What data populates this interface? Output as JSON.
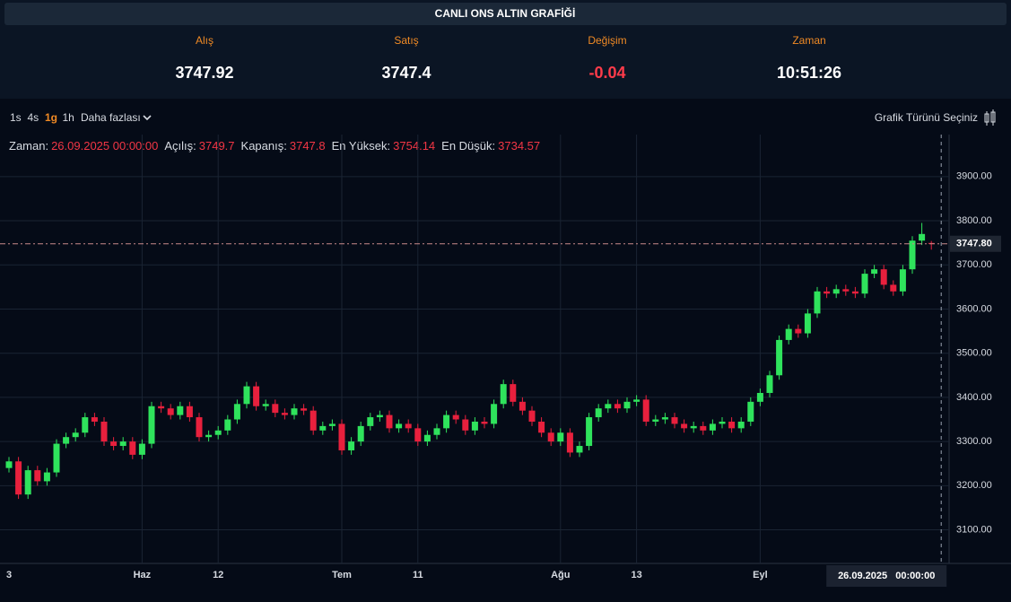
{
  "header": {
    "title": "CANLI ONS ALTIN GRAFİĞİ",
    "quotes": [
      {
        "label": "Alış",
        "value": "3747.92"
      },
      {
        "label": "Satış",
        "value": "3747.4"
      },
      {
        "label": "Değişim",
        "value": "-0.04"
      },
      {
        "label": "Zaman",
        "value": "10:51:26"
      }
    ]
  },
  "toolbar": {
    "intervals": [
      "1s",
      "4s",
      "1g",
      "1h"
    ],
    "active": "1g",
    "more": "Daha fazlası",
    "chart_type": "Grafik Türünü Seçiniz"
  },
  "info": {
    "labels": [
      "Zaman:",
      "Açılış:",
      "Kapanış:",
      "En Yüksek:",
      "En Düşük:"
    ],
    "values": [
      "26.09.2025 00:00:00",
      "3749.7",
      "3747.8",
      "3754.14",
      "3734.57"
    ]
  },
  "chart_data": {
    "type": "candlestick",
    "categories": [
      "3",
      null,
      null,
      null,
      null,
      null,
      null,
      null,
      null,
      null,
      null,
      null,
      null,
      null,
      "Haz",
      null,
      null,
      null,
      null,
      null,
      null,
      null,
      "12",
      null,
      null,
      null,
      null,
      null,
      null,
      null,
      null,
      null,
      null,
      null,
      null,
      "Tem",
      null,
      null,
      null,
      null,
      null,
      null,
      null,
      "11",
      null,
      null,
      null,
      null,
      null,
      null,
      null,
      null,
      null,
      null,
      null,
      null,
      null,
      null,
      "Ağu",
      null,
      null,
      null,
      null,
      null,
      null,
      null,
      "13",
      null,
      null,
      null,
      null,
      null,
      null,
      null,
      null,
      null,
      null,
      null,
      null,
      "Eyl",
      null,
      null,
      null,
      null,
      null,
      null,
      null,
      null,
      null,
      null,
      null,
      null,
      null,
      null,
      null,
      null,
      null,
      null
    ],
    "open": [
      3240,
      3255,
      3180,
      3235,
      3210,
      3230,
      3295,
      3310,
      3320,
      3355,
      3345,
      3300,
      3290,
      3300,
      3270,
      3295,
      3380,
      3375,
      3360,
      3380,
      3355,
      3310,
      3315,
      3325,
      3350,
      3385,
      3425,
      3380,
      3385,
      3365,
      3360,
      3375,
      3370,
      3325,
      3335,
      3340,
      3280,
      3300,
      3335,
      3355,
      3360,
      3330,
      3340,
      3330,
      3300,
      3315,
      3330,
      3360,
      3350,
      3325,
      3345,
      3340,
      3385,
      3430,
      3390,
      3370,
      3345,
      3320,
      3300,
      3320,
      3275,
      3290,
      3355,
      3375,
      3385,
      3375,
      3390,
      3395,
      3345,
      3350,
      3355,
      3340,
      3330,
      3335,
      3325,
      3340,
      3345,
      3330,
      3345,
      3390,
      3410,
      3450,
      3530,
      3555,
      3545,
      3590,
      3640,
      3635,
      3645,
      3640,
      3635,
      3680,
      3690,
      3655,
      3640,
      3690,
      3755,
      3749.7
    ],
    "high": [
      3265,
      3265,
      3245,
      3245,
      3240,
      3305,
      3320,
      3330,
      3365,
      3365,
      3355,
      3310,
      3310,
      3310,
      3305,
      3390,
      3390,
      3385,
      3390,
      3390,
      3365,
      3325,
      3335,
      3360,
      3395,
      3435,
      3435,
      3395,
      3395,
      3375,
      3385,
      3385,
      3380,
      3345,
      3350,
      3350,
      3310,
      3345,
      3365,
      3370,
      3370,
      3350,
      3350,
      3340,
      3325,
      3340,
      3370,
      3370,
      3360,
      3355,
      3355,
      3395,
      3440,
      3440,
      3400,
      3380,
      3355,
      3330,
      3330,
      3330,
      3300,
      3365,
      3385,
      3395,
      3395,
      3400,
      3405,
      3405,
      3360,
      3365,
      3365,
      3350,
      3345,
      3345,
      3350,
      3355,
      3355,
      3355,
      3400,
      3420,
      3460,
      3540,
      3565,
      3565,
      3600,
      3650,
      3650,
      3655,
      3655,
      3650,
      3690,
      3700,
      3700,
      3665,
      3700,
      3765,
      3795,
      3754.14
    ],
    "low": [
      3230,
      3170,
      3170,
      3200,
      3200,
      3220,
      3285,
      3300,
      3310,
      3335,
      3290,
      3280,
      3280,
      3260,
      3260,
      3285,
      3365,
      3350,
      3350,
      3345,
      3300,
      3300,
      3305,
      3315,
      3340,
      3375,
      3370,
      3370,
      3355,
      3350,
      3350,
      3360,
      3315,
      3315,
      3325,
      3270,
      3270,
      3290,
      3325,
      3345,
      3320,
      3320,
      3320,
      3290,
      3290,
      3305,
      3320,
      3340,
      3315,
      3315,
      3330,
      3330,
      3375,
      3380,
      3360,
      3335,
      3310,
      3290,
      3290,
      3265,
      3265,
      3280,
      3345,
      3365,
      3365,
      3365,
      3380,
      3335,
      3335,
      3340,
      3330,
      3320,
      3320,
      3315,
      3315,
      3330,
      3320,
      3320,
      3335,
      3380,
      3400,
      3440,
      3520,
      3535,
      3535,
      3580,
      3625,
      3625,
      3630,
      3625,
      3625,
      3670,
      3645,
      3630,
      3630,
      3680,
      3745,
      3734.57
    ],
    "close": [
      3255,
      3180,
      3235,
      3210,
      3230,
      3295,
      3310,
      3320,
      3355,
      3345,
      3300,
      3290,
      3300,
      3270,
      3295,
      3380,
      3375,
      3360,
      3380,
      3355,
      3310,
      3315,
      3325,
      3350,
      3385,
      3425,
      3380,
      3385,
      3365,
      3360,
      3375,
      3370,
      3325,
      3335,
      3340,
      3280,
      3300,
      3335,
      3355,
      3360,
      3330,
      3340,
      3330,
      3300,
      3315,
      3330,
      3360,
      3350,
      3325,
      3345,
      3340,
      3385,
      3430,
      3390,
      3370,
      3345,
      3320,
      3300,
      3320,
      3275,
      3290,
      3355,
      3375,
      3385,
      3375,
      3390,
      3395,
      3345,
      3350,
      3355,
      3340,
      3330,
      3335,
      3325,
      3340,
      3345,
      3330,
      3345,
      3390,
      3410,
      3450,
      3530,
      3555,
      3545,
      3590,
      3640,
      3635,
      3645,
      3640,
      3635,
      3680,
      3690,
      3655,
      3640,
      3690,
      3755,
      3770,
      3747.8
    ],
    "up_color": "#2fe35c",
    "down_color": "#e8203d",
    "ylim": [
      3030,
      3985
    ],
    "yticks": [
      {
        "value": 3100,
        "label": "3100.00"
      },
      {
        "value": 3200,
        "label": "3200.00"
      },
      {
        "value": 3300,
        "label": "3300.00"
      },
      {
        "value": 3400,
        "label": "3400.00"
      },
      {
        "value": 3500,
        "label": "3500.00"
      },
      {
        "value": 3600,
        "label": "3600.00"
      },
      {
        "value": 3700,
        "label": "3700.00"
      },
      {
        "value": 3800,
        "label": "3800.00"
      },
      {
        "value": 3900,
        "label": "3900.00"
      }
    ],
    "last_price": {
      "value": 3747.8,
      "label": "3747.80"
    },
    "cursor_label": "26.09.2025   00:00:00",
    "grid": true
  }
}
